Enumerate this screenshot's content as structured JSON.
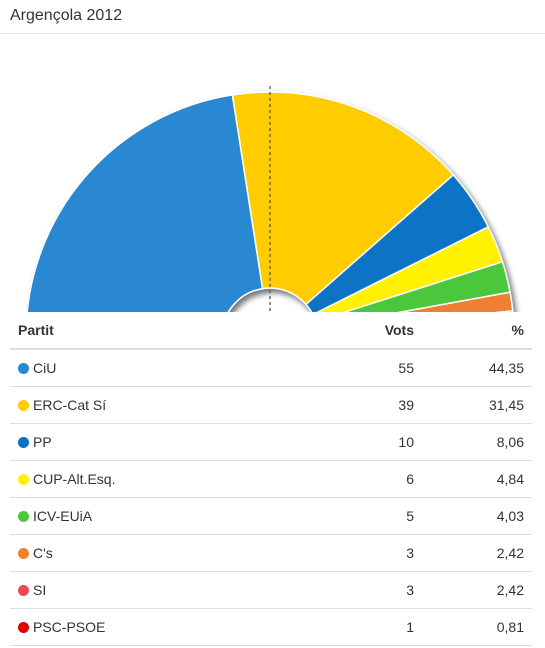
{
  "header": {
    "title": "Argençola 2012"
  },
  "table": {
    "headers": {
      "party": "Partit",
      "votes": "Vots",
      "percent": "%"
    }
  },
  "chart_data": {
    "type": "pie",
    "variant": "hemicycle",
    "title": "Argençola 2012",
    "shadow": true,
    "midline": "dashed",
    "series": [
      {
        "name": "CiU",
        "votes": 55,
        "percent": "44,35",
        "color": "#2b87d1"
      },
      {
        "name": "ERC-Cat Sí",
        "votes": 39,
        "percent": "31,45",
        "color": "#ffcc00"
      },
      {
        "name": "PP",
        "votes": 10,
        "percent": "8,06",
        "color": "#0a73c4"
      },
      {
        "name": "CUP-Alt.Esq.",
        "votes": 6,
        "percent": "4,84",
        "color": "#fff100"
      },
      {
        "name": "ICV-EUiA",
        "votes": 5,
        "percent": "4,03",
        "color": "#4cc73a"
      },
      {
        "name": "C's",
        "votes": 3,
        "percent": "2,42",
        "color": "#ef7f31"
      },
      {
        "name": "SI",
        "votes": 3,
        "percent": "2,42",
        "color": "#f0485a"
      },
      {
        "name": "PSC-PSOE",
        "votes": 1,
        "percent": "0,81",
        "color": "#e10000"
      }
    ]
  }
}
